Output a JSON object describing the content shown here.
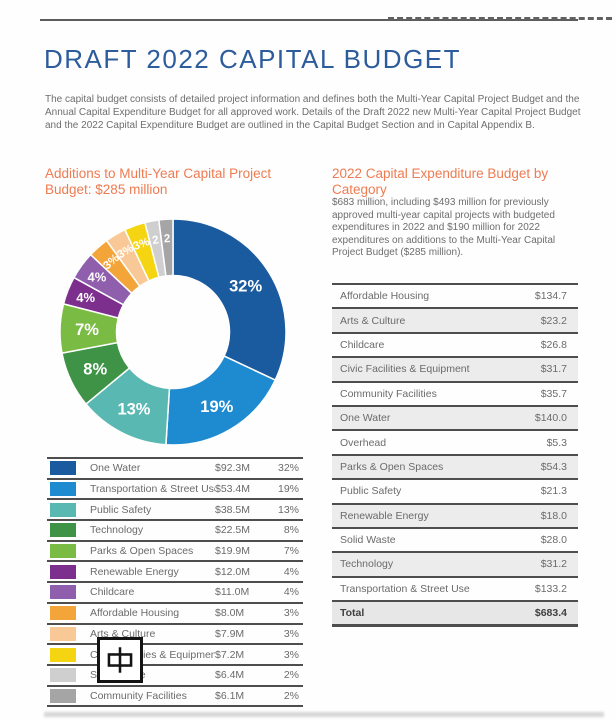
{
  "page": {
    "title": "DRAFT 2022 CAPITAL BUDGET",
    "intro": "The capital budget consists of detailed project information and defines both the Multi-Year Capital Project Budget and the Annual Capital Expenditure Budget for all approved work. Details of the Draft 2022 new Multi-Year Capital Project Budget and the 2022 Capital Expenditure Budget are outlined in the Capital Budget Section and in Capital Appendix B."
  },
  "left_section": {
    "heading": "Additions to Multi-Year Capital Project Budget: $285 million"
  },
  "right_section": {
    "heading": "2022 Capital Expenditure Budget by Category",
    "description": "$683 million, including $493 million for previously approved multi-year capital projects with budgeted expenditures in 2022 and $190 million for 2022 expenditures on additions to the Multi-Year Capital Project Budget ($285 million)."
  },
  "overlay": {
    "ime_character": "中"
  },
  "chart_data": [
    {
      "type": "pie",
      "subtype": "donut",
      "title": "Additions to Multi-Year Capital Project Budget: $285 million",
      "total_label": "$285 million",
      "categories": [
        "One Water",
        "Transportation & Street Use",
        "Public Safety",
        "Technology",
        "Parks & Open Spaces",
        "Renewable Energy",
        "Childcare",
        "Affordable Housing",
        "Arts & Culture",
        "Civic Facilities & Equipment",
        "Solid Waste",
        "Community Facilities"
      ],
      "values": [
        32,
        19,
        13,
        8,
        7,
        4,
        4,
        3,
        3,
        3,
        2,
        2
      ],
      "slice_labels": [
        "32%",
        "19%",
        "13%",
        "8%",
        "7%",
        "4%",
        "4%",
        "3%",
        "3%",
        "3%",
        "2",
        "2"
      ],
      "amounts_millions": [
        "$92.3M",
        "$53.4M",
        "$38.5M",
        "$22.5M",
        "$19.9M",
        "$12.0M",
        "$11.0M",
        "$8.0M",
        "$7.9M",
        "$7.2M",
        "$6.4M",
        "$6.1M"
      ],
      "percents": [
        "32%",
        "19%",
        "13%",
        "8%",
        "7%",
        "4%",
        "4%",
        "3%",
        "3%",
        "3%",
        "2%",
        "2%"
      ],
      "colors": [
        "#1a5a9e",
        "#1e8bd1",
        "#5ab8b2",
        "#3e9346",
        "#79bb43",
        "#7d2f8e",
        "#8f5fae",
        "#f4a53a",
        "#f8c996",
        "#f5d411",
        "#cfcfcf",
        "#a5a5a5"
      ],
      "legend_position": "bottom-table",
      "start_angle": "top",
      "direction": "clockwise"
    },
    {
      "type": "table",
      "title": "2022 Capital Expenditure Budget by Category",
      "rows": [
        {
          "category": "Affordable Housing",
          "amount": "$134.7"
        },
        {
          "category": "Arts & Culture",
          "amount": "$23.2"
        },
        {
          "category": "Childcare",
          "amount": "$26.8"
        },
        {
          "category": "Civic Facilities & Equipment",
          "amount": "$31.7"
        },
        {
          "category": "Community Facilities",
          "amount": "$35.7"
        },
        {
          "category": "One Water",
          "amount": "$140.0"
        },
        {
          "category": "Overhead",
          "amount": "$5.3"
        },
        {
          "category": "Parks & Open Spaces",
          "amount": "$54.3"
        },
        {
          "category": "Public Safety",
          "amount": "$21.3"
        },
        {
          "category": "Renewable Energy",
          "amount": "$18.0"
        },
        {
          "category": "Solid Waste",
          "amount": "$28.0"
        },
        {
          "category": "Technology",
          "amount": "$31.2"
        },
        {
          "category": "Transportation & Street Use",
          "amount": "$133.2"
        }
      ],
      "total": {
        "category": "Total",
        "amount": "$683.4"
      }
    }
  ]
}
